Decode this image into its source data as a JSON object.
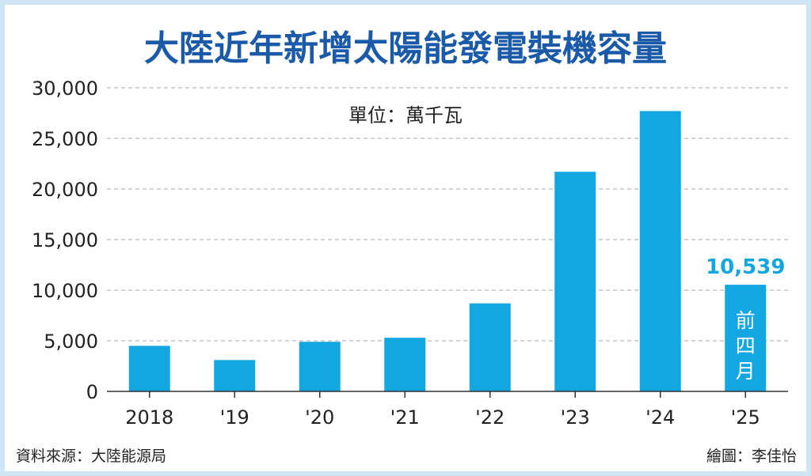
{
  "chart_data": {
    "type": "bar",
    "title": "大陸近年新增太陽能發電裝機容量",
    "unit_label": "單位：萬千瓦",
    "categories": [
      "2018",
      "'19",
      "'20",
      "'21",
      "'22",
      "'23",
      "'24",
      "'25"
    ],
    "values": [
      4500,
      3100,
      4900,
      5300,
      8700,
      21700,
      27700,
      10539
    ],
    "ylim": [
      0,
      30000
    ],
    "yticks": [
      "0",
      "5,000",
      "10,000",
      "15,000",
      "20,000",
      "25,000",
      "30,000"
    ],
    "grid": true,
    "highlight": {
      "category_index": 7,
      "value_label": "10,539",
      "inner_label": [
        "前",
        "四",
        "月"
      ]
    },
    "colors": {
      "title": "#1a5aa8",
      "bar": "#13a7e1",
      "highlight_label": "#13a7e1",
      "grid": "#b8b8b8",
      "frame": "#cfe5f3"
    },
    "source": "資料來源：大陸能源局",
    "credit": "繪圖：李佳怡"
  }
}
